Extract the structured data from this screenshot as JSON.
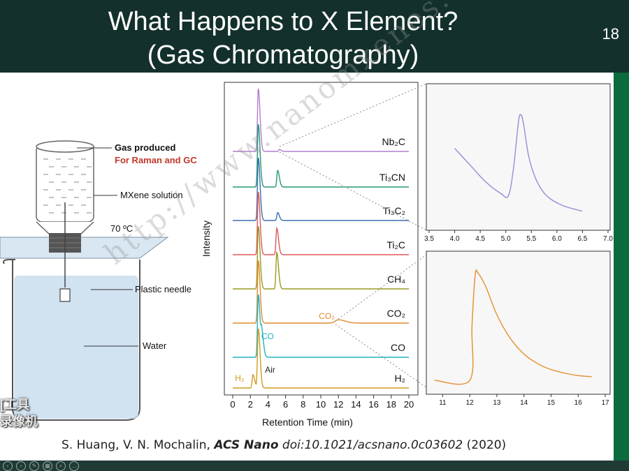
{
  "header": {
    "title_line1": "What Happens to X Element?",
    "title_line2": "(Gas Chromatography)",
    "slide_number": "18"
  },
  "schematic": {
    "gas_produced": "Gas produced",
    "for_raman_gc": "For Raman and GC",
    "mxene_solution": "MXene solution",
    "temperature": "70 ºC",
    "plastic_needle": "Plastic needle",
    "water": "Water",
    "colors": {
      "water": "#c9ddef",
      "cap": "#555555",
      "highlight": "#c0392b"
    }
  },
  "recorder_overlay": {
    "line1": "[工具",
    "line2": "录像机"
  },
  "watermark": "http://www.nanomxenes.com",
  "citation": {
    "authors": "S. Huang, V. N. Mochalin, ",
    "journal": "ACS Nano",
    "doi": "doi:10.1021/acsnano.0c03602",
    "year": " (2020)"
  },
  "chart_data": [
    {
      "type": "line",
      "xlabel": "Retention Time (min)",
      "ylabel": "Intensity",
      "xlim": [
        0,
        20
      ],
      "xticks": [
        0,
        2,
        4,
        6,
        8,
        10,
        12,
        14,
        16,
        18,
        20
      ],
      "peak_annotations": [
        {
          "text": "CO₂",
          "series": "CO2",
          "x": 12.0,
          "color": "#e08a2c"
        },
        {
          "text": "CO",
          "series": "CO",
          "x": 3.4,
          "color": "#1fb3c4"
        },
        {
          "text": "H₂",
          "series": "H2",
          "x": 2.0,
          "color": "#d19a1f"
        },
        {
          "text": "Air",
          "series": "H2",
          "x": 3.5,
          "color": "#222222"
        }
      ],
      "series": [
        {
          "name": "Nb₂C",
          "color": "#b07fd0",
          "peaks": [
            {
              "x": 2.9,
              "h": 0.95
            },
            {
              "x": 5.3,
              "h": 0.03
            }
          ]
        },
        {
          "name": "Ti₃CN",
          "color": "#239a6e",
          "peaks": [
            {
              "x": 2.9,
              "h": 0.95
            },
            {
              "x": 5.1,
              "h": 0.25
            }
          ]
        },
        {
          "name": "Ti₃C₂",
          "color": "#3a6fb0",
          "peaks": [
            {
              "x": 2.9,
              "h": 0.95
            },
            {
              "x": 5.1,
              "h": 0.12
            }
          ]
        },
        {
          "name": "Ti₂C",
          "color": "#e0595a",
          "peaks": [
            {
              "x": 2.9,
              "h": 0.95
            },
            {
              "x": 5.0,
              "h": 0.4
            }
          ]
        },
        {
          "name": "CH₄",
          "color": "#9a9a22",
          "peaks": [
            {
              "x": 2.9,
              "h": 0.95
            },
            {
              "x": 5.0,
              "h": 0.55
            }
          ]
        },
        {
          "name": "CO₂",
          "color": "#e08a2c",
          "peaks": [
            {
              "x": 2.9,
              "h": 0.95
            },
            {
              "x": 12.0,
              "h": 0.05
            }
          ]
        },
        {
          "name": "CO",
          "color": "#1fb3c4",
          "peaks": [
            {
              "x": 2.9,
              "h": 0.95
            },
            {
              "x": 3.3,
              "h": 0.35
            }
          ]
        },
        {
          "name": "H₂",
          "color": "#d19a1f",
          "peaks": [
            {
              "x": 2.3,
              "h": 0.2
            },
            {
              "x": 2.9,
              "h": 0.9
            }
          ]
        }
      ]
    },
    {
      "type": "line",
      "xlim": [
        3.5,
        7.0
      ],
      "xticks": [
        3.5,
        4.0,
        4.5,
        5.0,
        5.5,
        6.0,
        6.5,
        7.0
      ],
      "series": [
        {
          "color": "#9a95d8",
          "x": [
            4.0,
            4.3,
            4.6,
            4.9,
            5.05,
            5.15,
            5.25,
            5.3,
            5.35,
            5.45,
            5.6,
            5.8,
            6.1,
            6.5
          ],
          "y": [
            0.62,
            0.48,
            0.34,
            0.24,
            0.22,
            0.45,
            0.85,
            0.9,
            0.82,
            0.55,
            0.35,
            0.22,
            0.14,
            0.09
          ]
        }
      ]
    },
    {
      "type": "line",
      "xlim": [
        10.5,
        17.0
      ],
      "xticks": [
        11,
        12,
        13,
        14,
        15,
        16,
        17
      ],
      "series": [
        {
          "color": "#e6953a",
          "x": [
            10.7,
            12.0,
            12.08,
            12.2,
            12.3,
            12.6,
            13.0,
            13.5,
            14.0,
            14.5,
            15.0,
            15.5,
            16.0,
            16.5
          ],
          "y": [
            0.0,
            0.0,
            0.45,
            0.88,
            0.9,
            0.78,
            0.55,
            0.35,
            0.22,
            0.14,
            0.09,
            0.06,
            0.04,
            0.03
          ]
        }
      ]
    }
  ]
}
